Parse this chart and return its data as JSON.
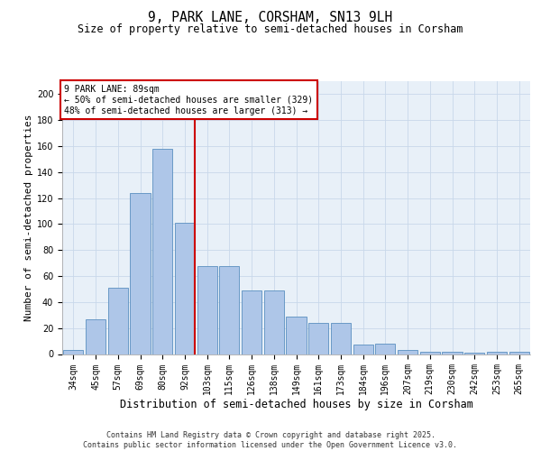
{
  "title1": "9, PARK LANE, CORSHAM, SN13 9LH",
  "title2": "Size of property relative to semi-detached houses in Corsham",
  "xlabel": "Distribution of semi-detached houses by size in Corsham",
  "ylabel": "Number of semi-detached properties",
  "bar_values": [
    3,
    27,
    51,
    124,
    158,
    101,
    68,
    68,
    49,
    49,
    29,
    24,
    24,
    7,
    8,
    3,
    2,
    2,
    1,
    2,
    2
  ],
  "categories": [
    "34sqm",
    "45sqm",
    "57sqm",
    "69sqm",
    "80sqm",
    "92sqm",
    "103sqm",
    "115sqm",
    "126sqm",
    "138sqm",
    "149sqm",
    "161sqm",
    "173sqm",
    "184sqm",
    "196sqm",
    "207sqm",
    "219sqm",
    "230sqm",
    "242sqm",
    "253sqm",
    "265sqm"
  ],
  "bar_color": "#aec6e8",
  "bar_edge_color": "#5a8fc0",
  "vline_color": "#cc0000",
  "annotation_box_color": "#cc0000",
  "ylim": [
    0,
    210
  ],
  "yticks": [
    0,
    20,
    40,
    60,
    80,
    100,
    120,
    140,
    160,
    180,
    200
  ],
  "grid_color": "#c8d8ea",
  "background_color": "#e8f0f8",
  "footer_text": "Contains HM Land Registry data © Crown copyright and database right 2025.\nContains public sector information licensed under the Open Government Licence v3.0.",
  "title1_fontsize": 10.5,
  "title2_fontsize": 8.5,
  "xlabel_fontsize": 8.5,
  "ylabel_fontsize": 8,
  "tick_fontsize": 7,
  "annotation_fontsize": 7,
  "footer_fontsize": 6
}
